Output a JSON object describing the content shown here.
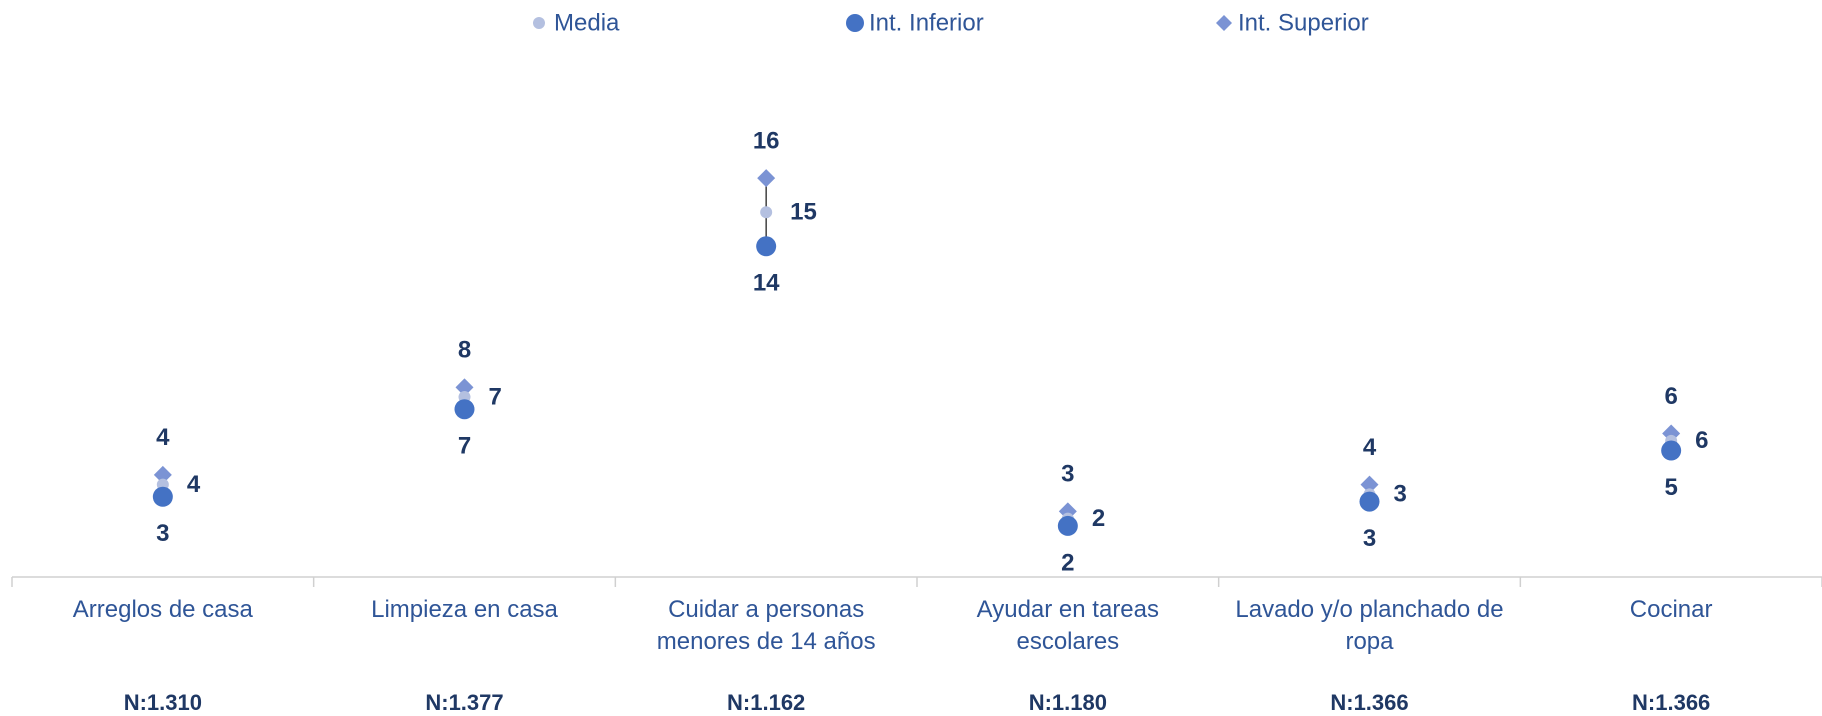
{
  "chart_data": {
    "type": "dot_interval",
    "categories": [
      "Arreglos de casa",
      "Limpieza en casa",
      "Cuidar a personas menores de 14 años",
      "Ayudar en tareas escolares",
      "Lavado y/o planchado de ropa",
      "Cocinar"
    ],
    "n_labels": [
      "N:1.310",
      "N:1.377",
      "N:1.162",
      "N:1.180",
      "N:1.366",
      "N:1.366"
    ],
    "ylim": [
      0,
      22
    ],
    "series": [
      {
        "name": "Media",
        "color": "#b4c0e0",
        "marker": "circle",
        "values": [
          3.8,
          7.4,
          15.0,
          2.4,
          3.4,
          5.6
        ],
        "value_labels": [
          "4",
          "7",
          "15",
          "2",
          "3",
          "6"
        ]
      },
      {
        "name": "Int. Inferior",
        "color": "#4472c4",
        "marker": "circle",
        "values": [
          3.3,
          6.9,
          13.6,
          2.1,
          3.1,
          5.2
        ],
        "value_labels": [
          "3",
          "7",
          "14",
          "2",
          "3",
          "5"
        ]
      },
      {
        "name": "Int. Superior",
        "color": "#7b93d4",
        "marker": "diamond",
        "values": [
          4.2,
          7.8,
          16.4,
          2.7,
          3.8,
          5.9
        ],
        "value_labels": [
          "4",
          "8",
          "16",
          "3",
          "4",
          "6"
        ]
      }
    ]
  }
}
